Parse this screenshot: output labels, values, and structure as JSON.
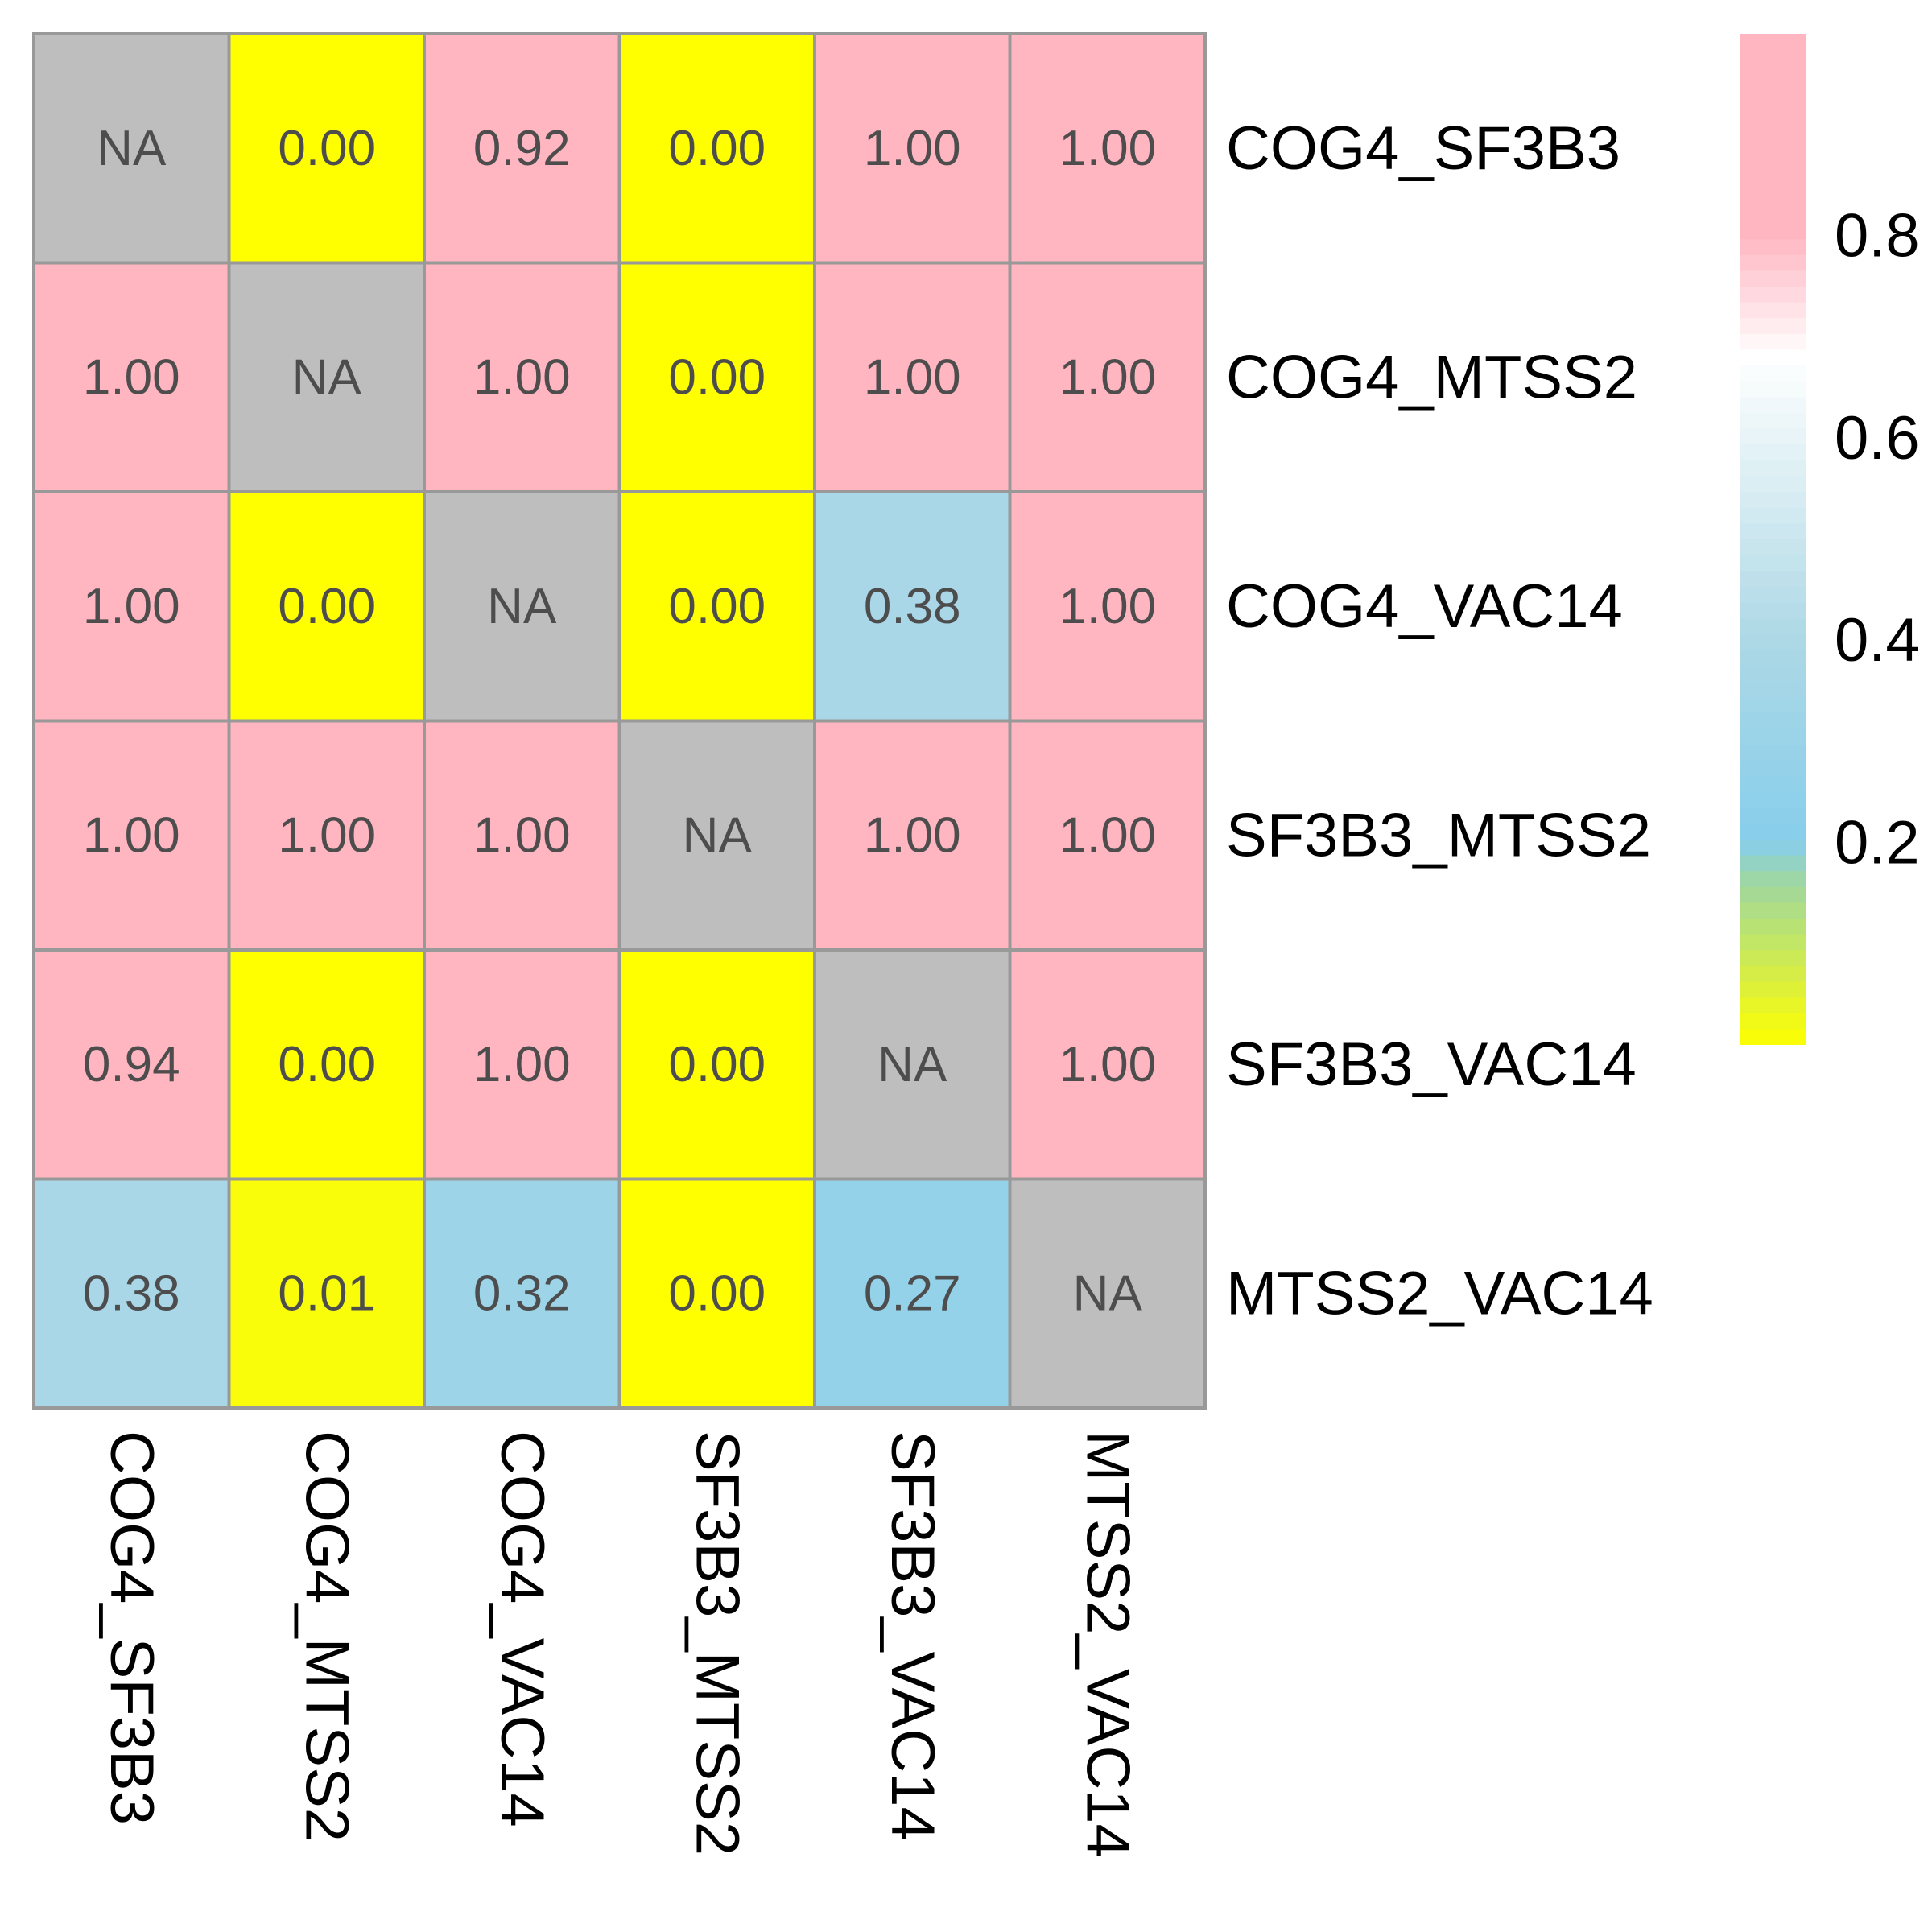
{
  "chart_data": {
    "type": "heatmap",
    "row_labels": [
      "COG4_SF3B3",
      "COG4_MTSS2",
      "COG4_VAC14",
      "SF3B3_MTSS2",
      "SF3B3_VAC14",
      "MTSS2_VAC14"
    ],
    "col_labels": [
      "COG4_SF3B3",
      "COG4_MTSS2",
      "COG4_VAC14",
      "SF3B3_MTSS2",
      "SF3B3_VAC14",
      "MTSS2_VAC14"
    ],
    "values": [
      [
        null,
        0.0,
        0.92,
        0.0,
        1.0,
        1.0
      ],
      [
        1.0,
        null,
        1.0,
        0.0,
        1.0,
        1.0
      ],
      [
        1.0,
        0.0,
        null,
        0.0,
        0.38,
        1.0
      ],
      [
        1.0,
        1.0,
        1.0,
        null,
        1.0,
        1.0
      ],
      [
        0.94,
        0.0,
        1.0,
        0.0,
        null,
        1.0
      ],
      [
        0.38,
        0.01,
        0.32,
        0.0,
        0.27,
        null
      ]
    ],
    "cell_labels": [
      [
        "NA",
        "0.00",
        "0.92",
        "0.00",
        "1.00",
        "1.00"
      ],
      [
        "1.00",
        "NA",
        "1.00",
        "0.00",
        "1.00",
        "1.00"
      ],
      [
        "1.00",
        "0.00",
        "NA",
        "0.00",
        "0.38",
        "1.00"
      ],
      [
        "1.00",
        "1.00",
        "1.00",
        "NA",
        "1.00",
        "1.00"
      ],
      [
        "0.94",
        "0.00",
        "1.00",
        "0.00",
        "NA",
        "1.00"
      ],
      [
        "0.38",
        "0.01",
        "0.32",
        "0.00",
        "0.27",
        "NA"
      ]
    ],
    "legend": {
      "ticks": [
        0.2,
        0.4,
        0.6,
        0.8
      ],
      "tick_labels": [
        "0.2",
        "0.4",
        "0.6",
        "0.8"
      ],
      "range": [
        0,
        1
      ]
    },
    "colors": {
      "na": "#bebebe",
      "yellow": "#ffff00",
      "green": "#9fd79f",
      "sky": "#87ceeb",
      "lightblue": "#add8e6",
      "white": "#ffffff",
      "pink": "#ffb6c1",
      "grid": "#999999",
      "cell_text": "#4d4d4d",
      "axis_text": "#000000"
    }
  }
}
